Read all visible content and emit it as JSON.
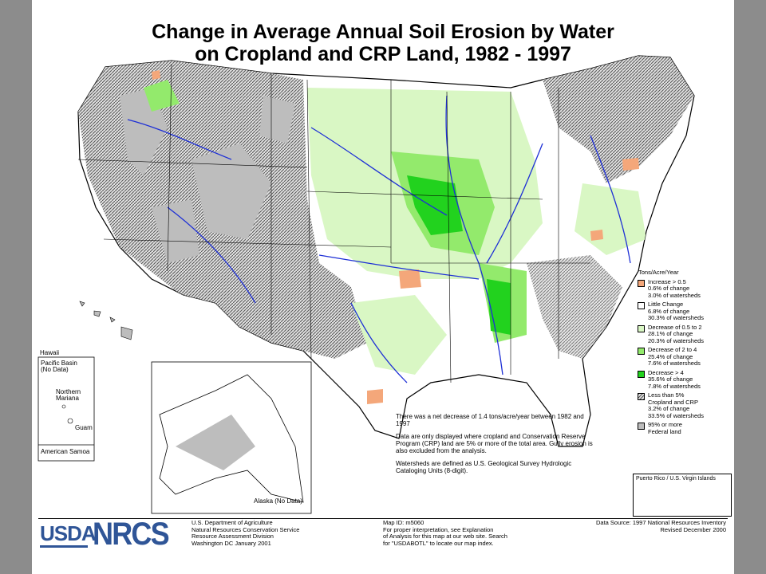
{
  "title": {
    "line1": "Change in Average Annual Soil Erosion by Water",
    "line2": "on Cropland and CRP Land, 1982 - 1997"
  },
  "legend": {
    "heading": "Tons/Acre/Year",
    "items": [
      {
        "label": "Increase > 0.5",
        "line2": "0.6% of change",
        "line3": "3.0% of watersheds",
        "color": "#f4a77a"
      },
      {
        "label": "Little Change",
        "line2": "6.8% of change",
        "line3": "30.3% of watersheds",
        "color": "#ffffff"
      },
      {
        "label": "Decrease of 0.5 to 2",
        "line2": "28.1% of change",
        "line3": "20.3% of watersheds",
        "color": "#d9f7c4"
      },
      {
        "label": "Decrease of 2 to 4",
        "line2": "25.4% of change",
        "line3": "7.6% of watersheds",
        "color": "#93ea6c"
      },
      {
        "label": "Decrease > 4",
        "line2": "35.6% of change",
        "line3": "7.8% of watersheds",
        "color": "#22d21e"
      },
      {
        "label": "Less than 5%",
        "line2": "Cropland and CRP",
        "line3": "3.2% of change",
        "line4": "33.5% of watersheds",
        "color": "#c8c8c8",
        "pattern": "hatched"
      },
      {
        "label": "95% or more",
        "line2": "Federal land",
        "color": "#bdbdbd"
      }
    ]
  },
  "note": {
    "p1": "There was a net decrease of 1.4 tons/acre/year between 1982 and 1997",
    "p2": "Data are only displayed where cropland and Conservation Reserve Program (CRP) land are 5% or more of the total area. Gully erosion is also excluded from the analysis.",
    "p3": "Watersheds are defined as U.S. Geological Survey Hydrologic Cataloging Units (8-digit)."
  },
  "insets": {
    "hawaii": "Hawaii",
    "pacific": "Pacific Basin (No Data)",
    "mariana": "Northern Mariana",
    "guam": "Guam",
    "samoa": "American Samoa",
    "alaska": "Alaska (No Data)",
    "puerto_rico": "Puerto Rico / U.S. Virgin Islands"
  },
  "footer": {
    "usda": "USDA",
    "nrcs": "NRCS",
    "agency": [
      "U.S. Department of Agriculture",
      "Natural Resources Conservation Service",
      "Resource Assessment Division",
      "Washington DC   January 2001"
    ],
    "map": [
      "Map ID: m5060",
      "For proper interpretation, see Explanation",
      "of Analysis for this map at our web site. Search",
      "for \"USDABOTL\" to locate our map index."
    ],
    "source": [
      "Data Source: 1997 National Resources Inventory",
      "Revised December 2000"
    ]
  },
  "colors": {
    "river": "#1d2fd6",
    "state_border": "#000000",
    "federal_gray": "#bdbdbd",
    "logo_blue": "#2f5597"
  }
}
